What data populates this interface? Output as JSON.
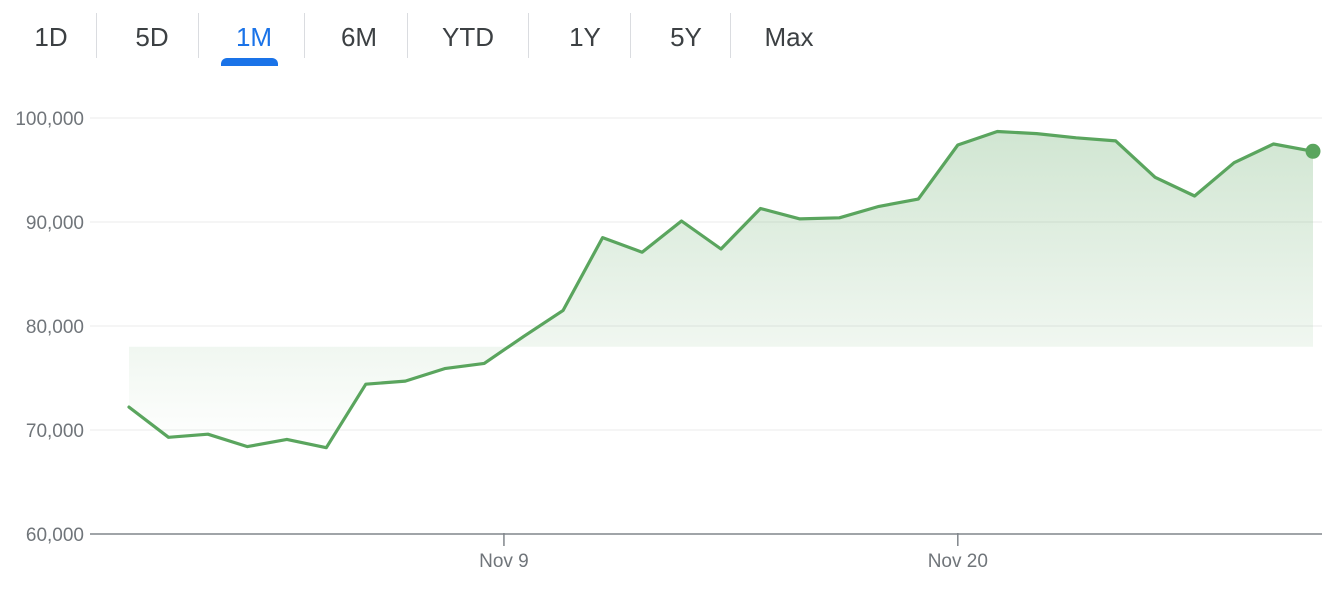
{
  "range_tabs": [
    {
      "label": "1D",
      "active": false
    },
    {
      "label": "5D",
      "active": false
    },
    {
      "label": "1M",
      "active": true
    },
    {
      "label": "6M",
      "active": false
    },
    {
      "label": "YTD",
      "active": false
    },
    {
      "label": "1Y",
      "active": false
    },
    {
      "label": "5Y",
      "active": false
    },
    {
      "label": "Max",
      "active": false
    }
  ],
  "colors": {
    "line": "#5aa55e",
    "active_tab": "#1a73e8",
    "grid": "#ebebeb",
    "axis": "#80868b"
  },
  "chart_data": {
    "type": "area",
    "y_ticks": [
      "60,000",
      "70,000",
      "80,000",
      "90,000",
      "100,000"
    ],
    "x_ticks": [
      "Nov 9",
      "Nov 20"
    ],
    "ylim": [
      60000,
      100000
    ],
    "grid": true,
    "series": [
      {
        "values": [
          72200,
          69300,
          69600,
          68400,
          69100,
          68300,
          74400,
          74700,
          75900,
          76400,
          79000,
          81500,
          88500,
          87100,
          90100,
          87400,
          91300,
          90300,
          90400,
          91500,
          92200,
          97400,
          98700,
          98500,
          98100,
          97800,
          94300,
          92500,
          95700,
          97500,
          96800
        ]
      }
    ]
  }
}
